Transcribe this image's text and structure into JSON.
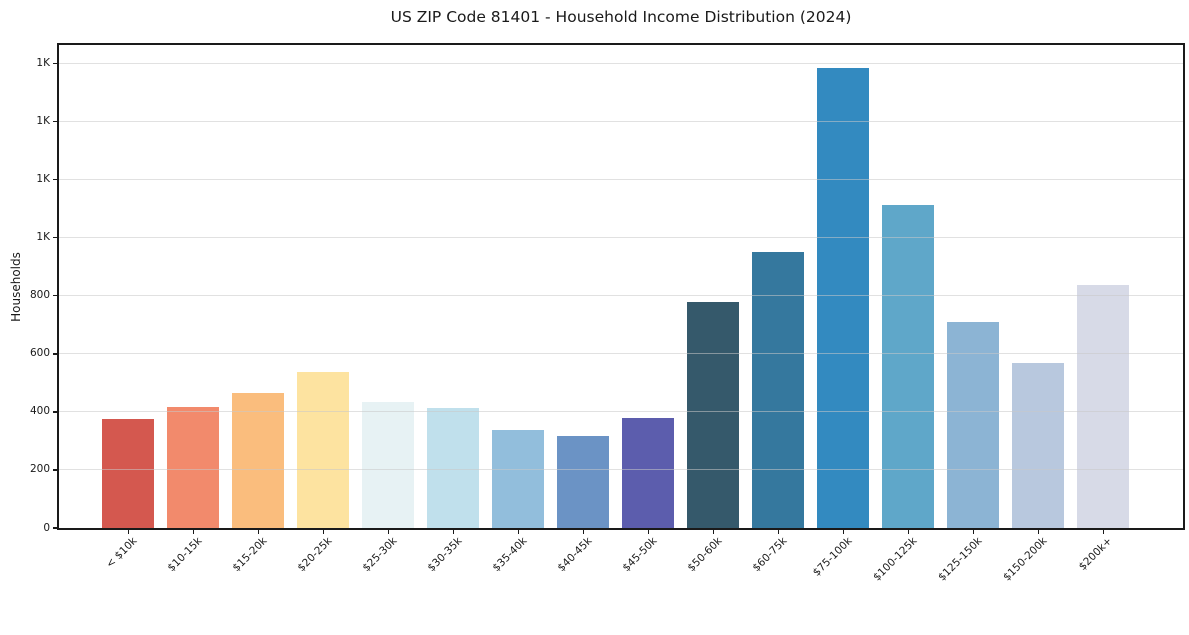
{
  "chart_data": {
    "type": "bar",
    "title": "US ZIP Code 81401 - Household Income Distribution (2024)",
    "xlabel": "",
    "ylabel": "Households",
    "categories": [
      "< $10k",
      "$10-15k",
      "$15-20k",
      "$20-25k",
      "$25-30k",
      "$30-35k",
      "$35-40k",
      "$40-45k",
      "$45-50k",
      "$50-60k",
      "$60-75k",
      "$75-100k",
      "$100-125k",
      "$125-150k",
      "$150-200k",
      "$200k+"
    ],
    "values": [
      375,
      417,
      465,
      537,
      433,
      414,
      337,
      316,
      380,
      778,
      950,
      1583,
      1112,
      709,
      568,
      837
    ],
    "bar_colors": [
      "#d4584f",
      "#f28a6c",
      "#fabd7d",
      "#fde3a0",
      "#e7f2f4",
      "#c0e0ec",
      "#92bedc",
      "#6b93c5",
      "#5c5dad",
      "#35596b",
      "#35789e",
      "#338ac0",
      "#5fa7c9",
      "#8cb4d4",
      "#b8c8de",
      "#d7dae7"
    ],
    "ylim": [
      0,
      1663
    ],
    "yticks": [
      {
        "value": 0,
        "label": "0"
      },
      {
        "value": 200,
        "label": "200"
      },
      {
        "value": 400,
        "label": "400"
      },
      {
        "value": 600,
        "label": "600"
      },
      {
        "value": 800,
        "label": "800"
      },
      {
        "value": 1000,
        "label": "1K"
      },
      {
        "value": 1200,
        "label": "1K"
      },
      {
        "value": 1400,
        "label": "1K"
      },
      {
        "value": 1600,
        "label": "1K"
      }
    ],
    "grid": "horizontal-on-top-of-bars",
    "legend": "none",
    "colors": {
      "background": "#ffffff",
      "spine": "#1a1a1a",
      "grid": "#cccccc",
      "text": "#1a1a1a"
    }
  }
}
